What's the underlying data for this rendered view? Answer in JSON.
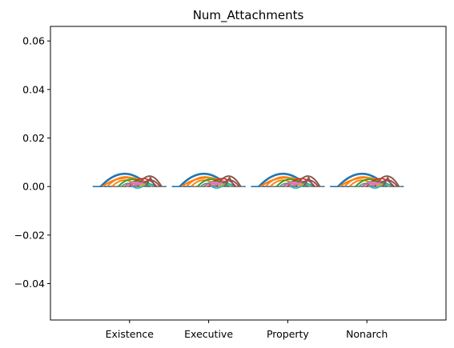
{
  "chart_data": {
    "type": "violin",
    "title": "Num_Attachments",
    "xlabel": "",
    "ylabel": "",
    "categories": [
      "Existence",
      "Executive",
      "Property",
      "Nonarch"
    ],
    "ylim": [
      -0.055,
      0.066
    ],
    "yticks": [
      0.06,
      0.04,
      0.02,
      0.0,
      -0.02,
      -0.04
    ],
    "ytick_labels": [
      "0.06",
      "0.04",
      "0.02",
      "0.00",
      "−0.02",
      "−0.04"
    ],
    "grid": false,
    "legend": "none",
    "value": 0.0,
    "annotation": "each category shows an overlapping stack of small colored arcs centered at y = 0.00",
    "arc_colors": [
      "#1f77b4",
      "#ff7f0e",
      "#2ca02c",
      "#d62728",
      "#9467bd",
      "#8c564b",
      "#e377c2",
      "#7f7f7f",
      "#bcbd22",
      "#17becf"
    ]
  }
}
